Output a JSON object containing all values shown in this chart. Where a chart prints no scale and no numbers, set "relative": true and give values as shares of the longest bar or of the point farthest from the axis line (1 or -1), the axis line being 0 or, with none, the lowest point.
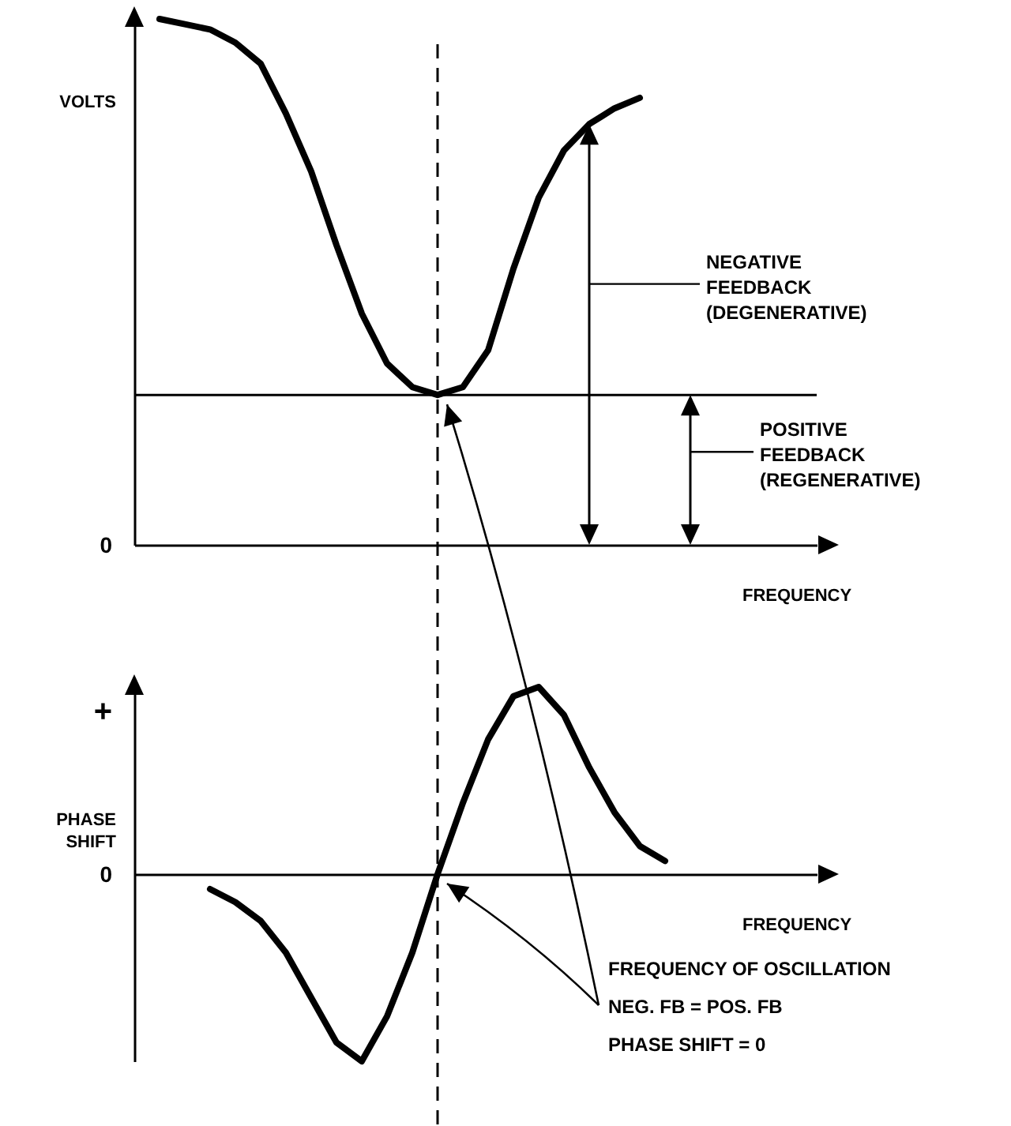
{
  "chart_data": [
    {
      "type": "line",
      "relative": true,
      "ylabel": "VOLTS",
      "xlabel": "FREQUENCY",
      "tick_labels": false,
      "categories": [
        null,
        null,
        null,
        null,
        null,
        null,
        null,
        null,
        null,
        null,
        null,
        null,
        null,
        null,
        null,
        null,
        null,
        null,
        null,
        null,
        null,
        null,
        null,
        null,
        null,
        null,
        null,
        null
      ],
      "series": [
        {
          "color": "#000000",
          "values": [
            null,
            1.0,
            0.99,
            0.98,
            0.955,
            0.915,
            0.82,
            0.71,
            0.57,
            0.44,
            0.345,
            0.3,
            0.285,
            0.3,
            0.37,
            0.525,
            0.66,
            0.75,
            0.8,
            0.83,
            0.85,
            null,
            null,
            null,
            null,
            null,
            null,
            null
          ]
        }
      ],
      "ref_lines": [
        {
          "axis": "y",
          "value": 0.285
        }
      ],
      "annotations": [
        "0",
        "NEGATIVE FEEDBACK (DEGENERATIVE)",
        "POSITIVE FEEDBACK (REGENERATIVE)"
      ]
    },
    {
      "type": "line",
      "relative": true,
      "ylabel": "PHASE SHIFT",
      "xlabel": "FREQUENCY",
      "tick_labels": false,
      "categories": [
        null,
        null,
        null,
        null,
        null,
        null,
        null,
        null,
        null,
        null,
        null,
        null,
        null,
        null,
        null,
        null,
        null,
        null,
        null,
        null,
        null,
        null,
        null,
        null,
        null,
        null,
        null,
        null
      ],
      "series": [
        {
          "color": "#000000",
          "values": [
            null,
            null,
            null,
            -0.08,
            -0.15,
            -0.25,
            -0.42,
            -0.66,
            -0.9,
            -1.0,
            -0.76,
            -0.42,
            0,
            0.38,
            0.72,
            0.95,
            1.0,
            0.85,
            0.57,
            0.33,
            0.15,
            0.07,
            null,
            null,
            null,
            null,
            null,
            null
          ]
        }
      ],
      "annotations": [
        "+",
        "0",
        "FREQUENCY OF OSCILLATION",
        "NEG. FB = POS. FB",
        "PHASE SHIFT = 0"
      ]
    }
  ]
}
